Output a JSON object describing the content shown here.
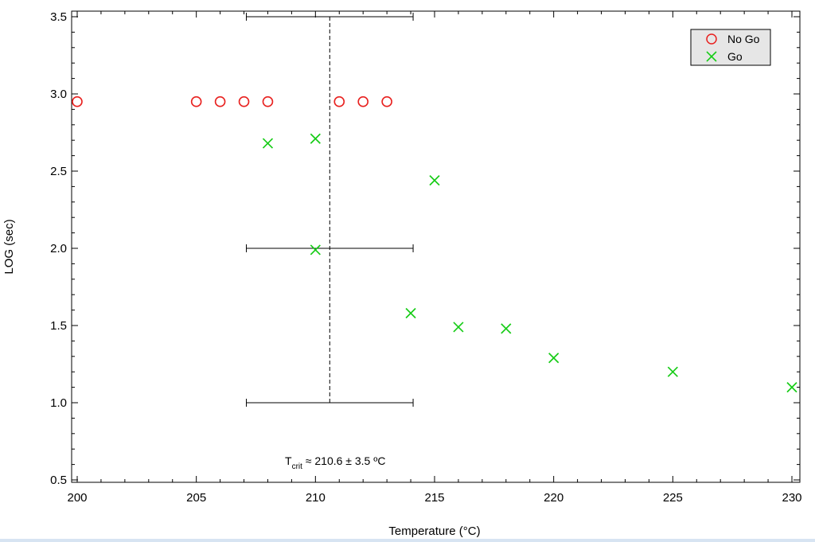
{
  "chart_data": {
    "type": "scatter",
    "xlabel": "Temperature (°C)",
    "ylabel": "LOG (sec)",
    "xlim": [
      200,
      230
    ],
    "ylim": [
      0.5,
      3.5
    ],
    "x_ticks": [
      200,
      205,
      210,
      215,
      220,
      225,
      230
    ],
    "y_ticks": [
      0.5,
      1.0,
      1.5,
      2.0,
      2.5,
      3.0,
      3.5
    ],
    "y_tick_labels": [
      "0.5",
      "1.0",
      "1.5",
      "2.0",
      "2.5",
      "3.0",
      "3.5"
    ],
    "legend_position": "top-right",
    "series": [
      {
        "name": "No Go",
        "marker": "circle",
        "color": "#e8211f",
        "points": [
          [
            200,
            2.95
          ],
          [
            205,
            2.95
          ],
          [
            206,
            2.95
          ],
          [
            207,
            2.95
          ],
          [
            208,
            2.95
          ],
          [
            211,
            2.95
          ],
          [
            212,
            2.95
          ],
          [
            213,
            2.95
          ]
        ]
      },
      {
        "name": "Go",
        "marker": "x",
        "color": "#17cc17",
        "points": [
          [
            208,
            2.68
          ],
          [
            210,
            2.71
          ],
          [
            210,
            1.99
          ],
          [
            214,
            1.58
          ],
          [
            215,
            2.44
          ],
          [
            216,
            1.49
          ],
          [
            218,
            1.48
          ],
          [
            220,
            1.29
          ],
          [
            225,
            1.2
          ],
          [
            230,
            1.1
          ]
        ]
      }
    ],
    "t_crit": {
      "value": 210.6,
      "error": 3.5,
      "line_y": [
        1.0,
        3.5
      ],
      "error_bar_y": [
        3.5,
        2.0,
        1.0
      ],
      "label_main": "T",
      "label_sub": "crit",
      "label_rest": " ≈ 210.6 ± 3.5 ºC"
    }
  }
}
